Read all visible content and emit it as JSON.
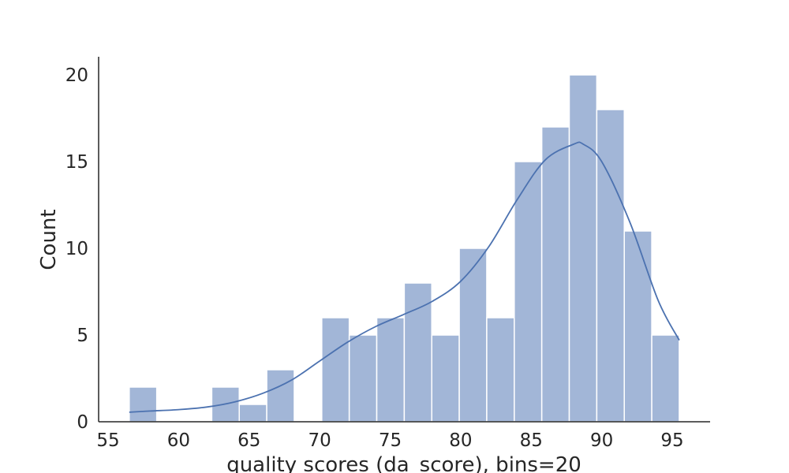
{
  "chart_data": {
    "type": "histogram",
    "xlabel": "quality scores (da_score), bins=20",
    "ylabel": "Count",
    "xlim": [
      54.6,
      97.5
    ],
    "ylim": [
      0,
      21
    ],
    "x_ticks": [
      55,
      60,
      65,
      70,
      75,
      80,
      85,
      90,
      95
    ],
    "y_ticks": [
      0,
      5,
      10,
      15,
      20
    ],
    "grid": false,
    "bins": [
      {
        "x0": 56.5,
        "x1": 58.45,
        "count": 2
      },
      {
        "x0": 58.45,
        "x1": 60.4,
        "count": 0
      },
      {
        "x0": 60.4,
        "x1": 62.35,
        "count": 0
      },
      {
        "x0": 62.35,
        "x1": 64.3,
        "count": 2
      },
      {
        "x0": 64.3,
        "x1": 66.25,
        "count": 1
      },
      {
        "x0": 66.25,
        "x1": 68.2,
        "count": 3
      },
      {
        "x0": 68.2,
        "x1": 70.15,
        "count": 0
      },
      {
        "x0": 70.15,
        "x1": 72.1,
        "count": 6
      },
      {
        "x0": 72.1,
        "x1": 74.05,
        "count": 5
      },
      {
        "x0": 74.05,
        "x1": 76.0,
        "count": 6
      },
      {
        "x0": 76.0,
        "x1": 77.95,
        "count": 8
      },
      {
        "x0": 77.95,
        "x1": 79.9,
        "count": 5
      },
      {
        "x0": 79.9,
        "x1": 81.85,
        "count": 10
      },
      {
        "x0": 81.85,
        "x1": 83.8,
        "count": 6
      },
      {
        "x0": 83.8,
        "x1": 85.75,
        "count": 15
      },
      {
        "x0": 85.75,
        "x1": 87.7,
        "count": 17
      },
      {
        "x0": 87.7,
        "x1": 89.65,
        "count": 20
      },
      {
        "x0": 89.65,
        "x1": 91.6,
        "count": 18
      },
      {
        "x0": 91.6,
        "x1": 93.55,
        "count": 11
      },
      {
        "x0": 93.55,
        "x1": 95.5,
        "count": 5
      }
    ],
    "kde": {
      "x": [
        56.5,
        58,
        60,
        62,
        64,
        66,
        68,
        70,
        72,
        74,
        76,
        78,
        80,
        82,
        84,
        86,
        88,
        88.7,
        90,
        92,
        94,
        95.5
      ],
      "y": [
        0.55,
        0.62,
        0.7,
        0.85,
        1.15,
        1.65,
        2.4,
        3.5,
        4.6,
        5.5,
        6.2,
        6.95,
        8.1,
        10.1,
        12.8,
        15.1,
        16.0,
        16.0,
        15.0,
        11.5,
        7.0,
        4.7
      ]
    },
    "colors": {
      "bar_fill": "#a2b6d7",
      "bar_edge": "#ffffff",
      "kde": "#4c72b0",
      "axis": "#262626"
    }
  }
}
